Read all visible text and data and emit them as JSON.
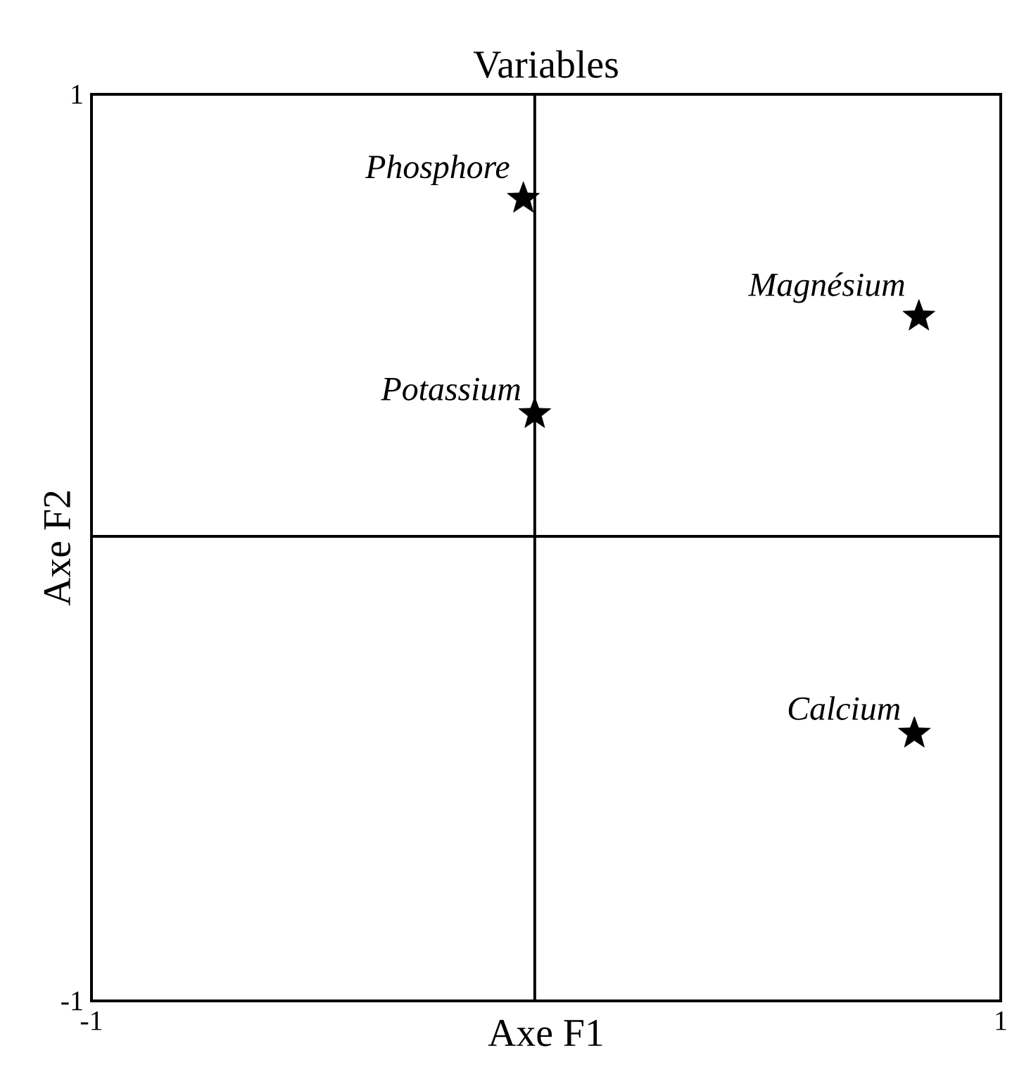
{
  "chart_data": {
    "type": "scatter",
    "title": "Variables",
    "xlabel": "Axe F1",
    "ylabel": "Axe F2",
    "x": [
      -0.05,
      -0.025,
      0.82,
      0.81
    ],
    "values": [
      0.77,
      0.295,
      0.51,
      -0.41
    ],
    "color": "#000000",
    "marker": "star",
    "xlim": [
      -1,
      1
    ],
    "ylim": [
      -1,
      1
    ],
    "xticks": [
      -1,
      1
    ],
    "yticks": [
      -1,
      1
    ],
    "ref_lines": [
      {
        "axis": "x",
        "value": -0.025
      },
      {
        "axis": "y",
        "value": 0.025
      }
    ],
    "annotations": [
      {
        "text": "Phosphore",
        "x": -0.05,
        "y": 0.77
      },
      {
        "text": "Potassium",
        "x": -0.025,
        "y": 0.295
      },
      {
        "text": "Magnésium",
        "x": 0.82,
        "y": 0.51
      },
      {
        "text": "Calcium",
        "x": 0.81,
        "y": -0.41
      }
    ]
  }
}
